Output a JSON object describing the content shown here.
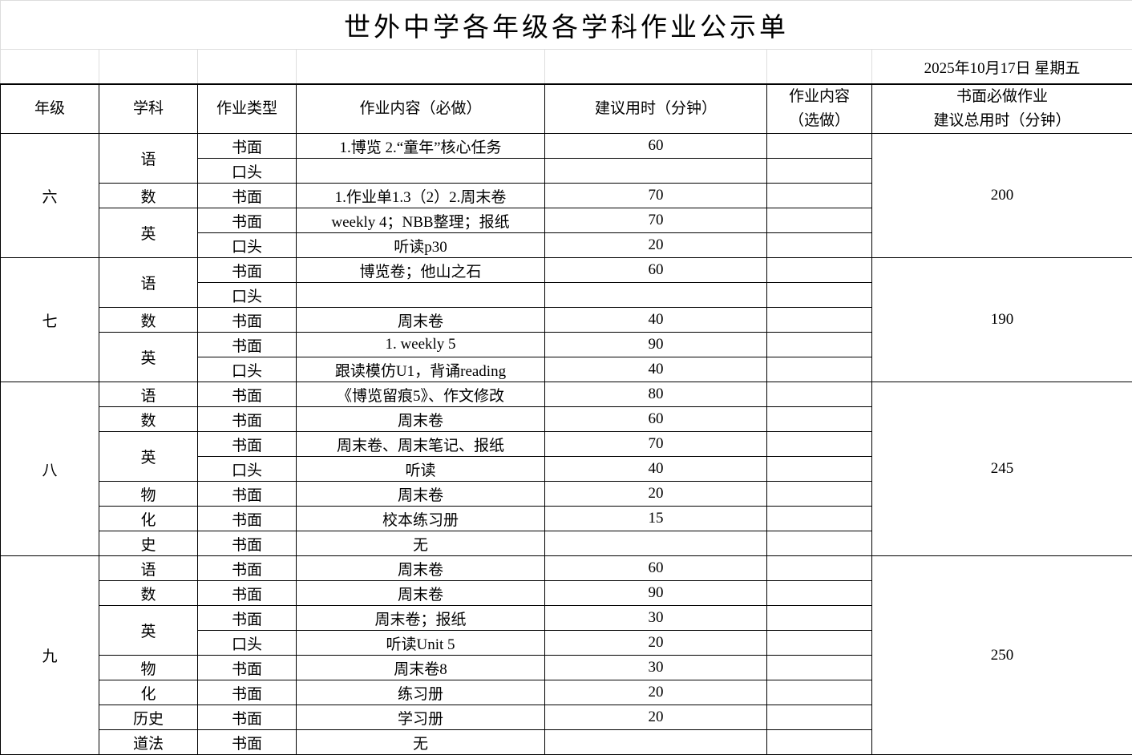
{
  "title": "世外中学各年级各学科作业公示单",
  "date": "2025年10月17日  星期五",
  "headers": {
    "grade": "年级",
    "subject": "学科",
    "type": "作业类型",
    "content": "作业内容（必做）",
    "minutes": "建议用时（分钟）",
    "optional_line1": "作业内容",
    "optional_line2": "（选做）",
    "total_line1": "书面必做作业",
    "total_line2": "建议总用时（分钟）"
  },
  "grades": [
    {
      "name": "六",
      "total": "200",
      "subjects": [
        {
          "name": "语",
          "items": [
            {
              "type": "书面",
              "content": "1.博览 2.“童年”核心任务",
              "minutes": "60"
            },
            {
              "type": "口头",
              "content": "",
              "minutes": ""
            }
          ]
        },
        {
          "name": "数",
          "items": [
            {
              "type": "书面",
              "content": "1.作业单1.3（2）2.周末卷",
              "minutes": "70"
            }
          ]
        },
        {
          "name": "英",
          "items": [
            {
              "type": "书面",
              "content": "weekly 4；NBB整理；报纸",
              "minutes": "70"
            },
            {
              "type": "口头",
              "content": "听读p30",
              "minutes": "20"
            }
          ]
        }
      ]
    },
    {
      "name": "七",
      "total": "190",
      "subjects": [
        {
          "name": "语",
          "items": [
            {
              "type": "书面",
              "content": "博览卷；他山之石",
              "minutes": "60"
            },
            {
              "type": "口头",
              "content": "",
              "minutes": ""
            }
          ]
        },
        {
          "name": "数",
          "items": [
            {
              "type": "书面",
              "content": "周末卷",
              "minutes": "40"
            }
          ]
        },
        {
          "name": "英",
          "items": [
            {
              "type": "书面",
              "content": "1. weekly 5",
              "minutes": "90"
            },
            {
              "type": "口头",
              "content": "跟读模仿U1，背诵reading",
              "minutes": "40"
            }
          ]
        }
      ]
    },
    {
      "name": "八",
      "total": "245",
      "subjects": [
        {
          "name": "语",
          "items": [
            {
              "type": "书面",
              "content": "《博览留痕5》、作文修改",
              "minutes": "80"
            }
          ]
        },
        {
          "name": "数",
          "items": [
            {
              "type": "书面",
              "content": "周末卷",
              "minutes": "60"
            }
          ]
        },
        {
          "name": "英",
          "items": [
            {
              "type": "书面",
              "content": "周末卷、周末笔记、报纸",
              "minutes": "70"
            },
            {
              "type": "口头",
              "content": "听读",
              "minutes": "40"
            }
          ]
        },
        {
          "name": "物",
          "items": [
            {
              "type": "书面",
              "content": "周末卷",
              "minutes": "20"
            }
          ]
        },
        {
          "name": "化",
          "items": [
            {
              "type": "书面",
              "content": "校本练习册",
              "minutes": "15"
            }
          ]
        },
        {
          "name": "史",
          "items": [
            {
              "type": "书面",
              "content": "无",
              "minutes": ""
            }
          ]
        }
      ]
    },
    {
      "name": "九",
      "total": "250",
      "subjects": [
        {
          "name": "语",
          "items": [
            {
              "type": "书面",
              "content": "周末卷",
              "minutes": "60"
            }
          ]
        },
        {
          "name": "数",
          "items": [
            {
              "type": "书面",
              "content": "周末卷",
              "minutes": "90"
            }
          ]
        },
        {
          "name": "英",
          "items": [
            {
              "type": "书面",
              "content": "周末卷；报纸",
              "minutes": "30"
            },
            {
              "type": "口头",
              "content": "听读Unit 5",
              "minutes": "20"
            }
          ]
        },
        {
          "name": "物",
          "items": [
            {
              "type": "书面",
              "content": "周末卷8",
              "minutes": "30"
            }
          ]
        },
        {
          "name": "化",
          "items": [
            {
              "type": "书面",
              "content": "练习册",
              "minutes": "20"
            }
          ]
        },
        {
          "name": "历史",
          "items": [
            {
              "type": "书面",
              "content": "学习册",
              "minutes": "20"
            }
          ]
        },
        {
          "name": "道法",
          "items": [
            {
              "type": "书面",
              "content": "无",
              "minutes": ""
            }
          ]
        }
      ]
    }
  ]
}
